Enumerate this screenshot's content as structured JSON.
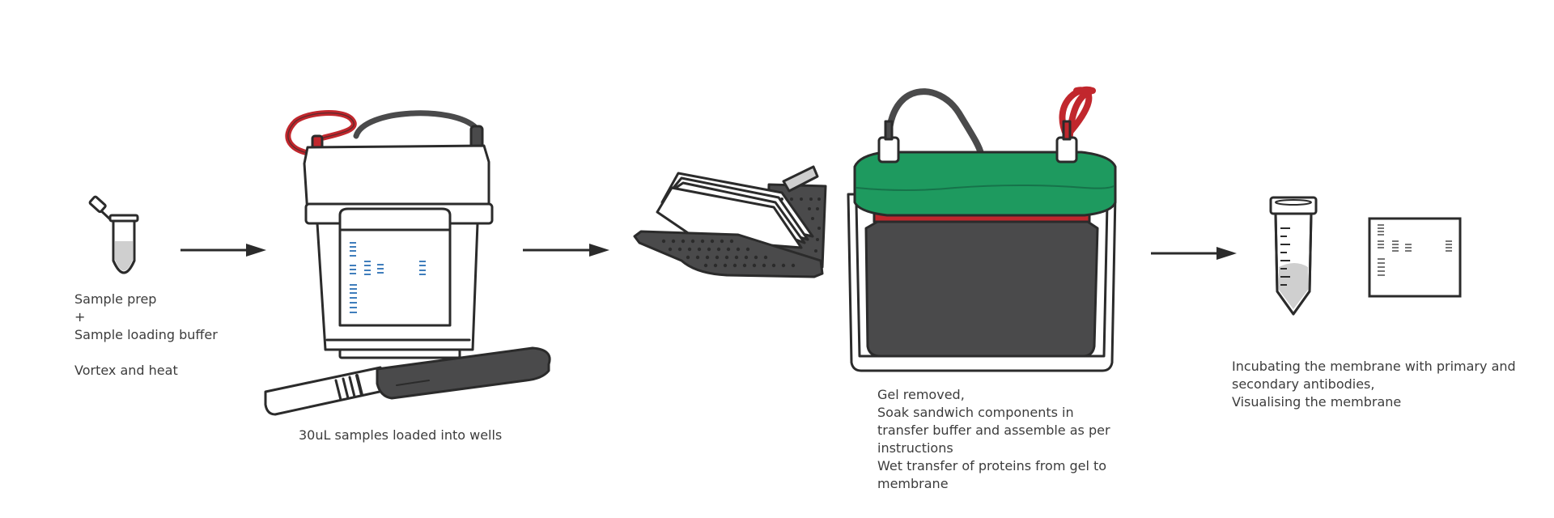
{
  "colors": {
    "outline": "#2b2b2b",
    "dark_body": "#4a4a4b",
    "red_lead": "#c1272d",
    "green_lid": "#1e9a5f",
    "gel_band": "#2a6fb5",
    "liquid": "#cfcfcf"
  },
  "steps": [
    {
      "id": "sample-prep",
      "caption_lines": [
        "Sample prep",
        "+",
        "Sample loading buffer",
        "",
        "Vortex and heat"
      ]
    },
    {
      "id": "gel-loading",
      "caption_lines": [
        "30uL samples loaded into wells"
      ]
    },
    {
      "id": "wet-transfer",
      "caption_lines": [
        "Gel removed,",
        "Soak sandwich components in",
        "transfer buffer and assemble as per",
        "instructions",
        "Wet transfer of proteins from gel to",
        "membrane"
      ]
    },
    {
      "id": "antibody-detection",
      "caption_lines": [
        "Incubating the membrane with primary and",
        "secondary antibodies,",
        "Visualising the membrane"
      ]
    }
  ],
  "icons": {
    "step1": "microcentrifuge-tube-icon",
    "step2": [
      "electrophoresis-tank-icon",
      "gel-loading-tool-icon"
    ],
    "step3": [
      "transfer-cassette-icon",
      "transfer-tank-icon"
    ],
    "step4": [
      "conical-tube-icon",
      "membrane-blot-icon"
    ],
    "connector": "right-arrow-icon"
  }
}
